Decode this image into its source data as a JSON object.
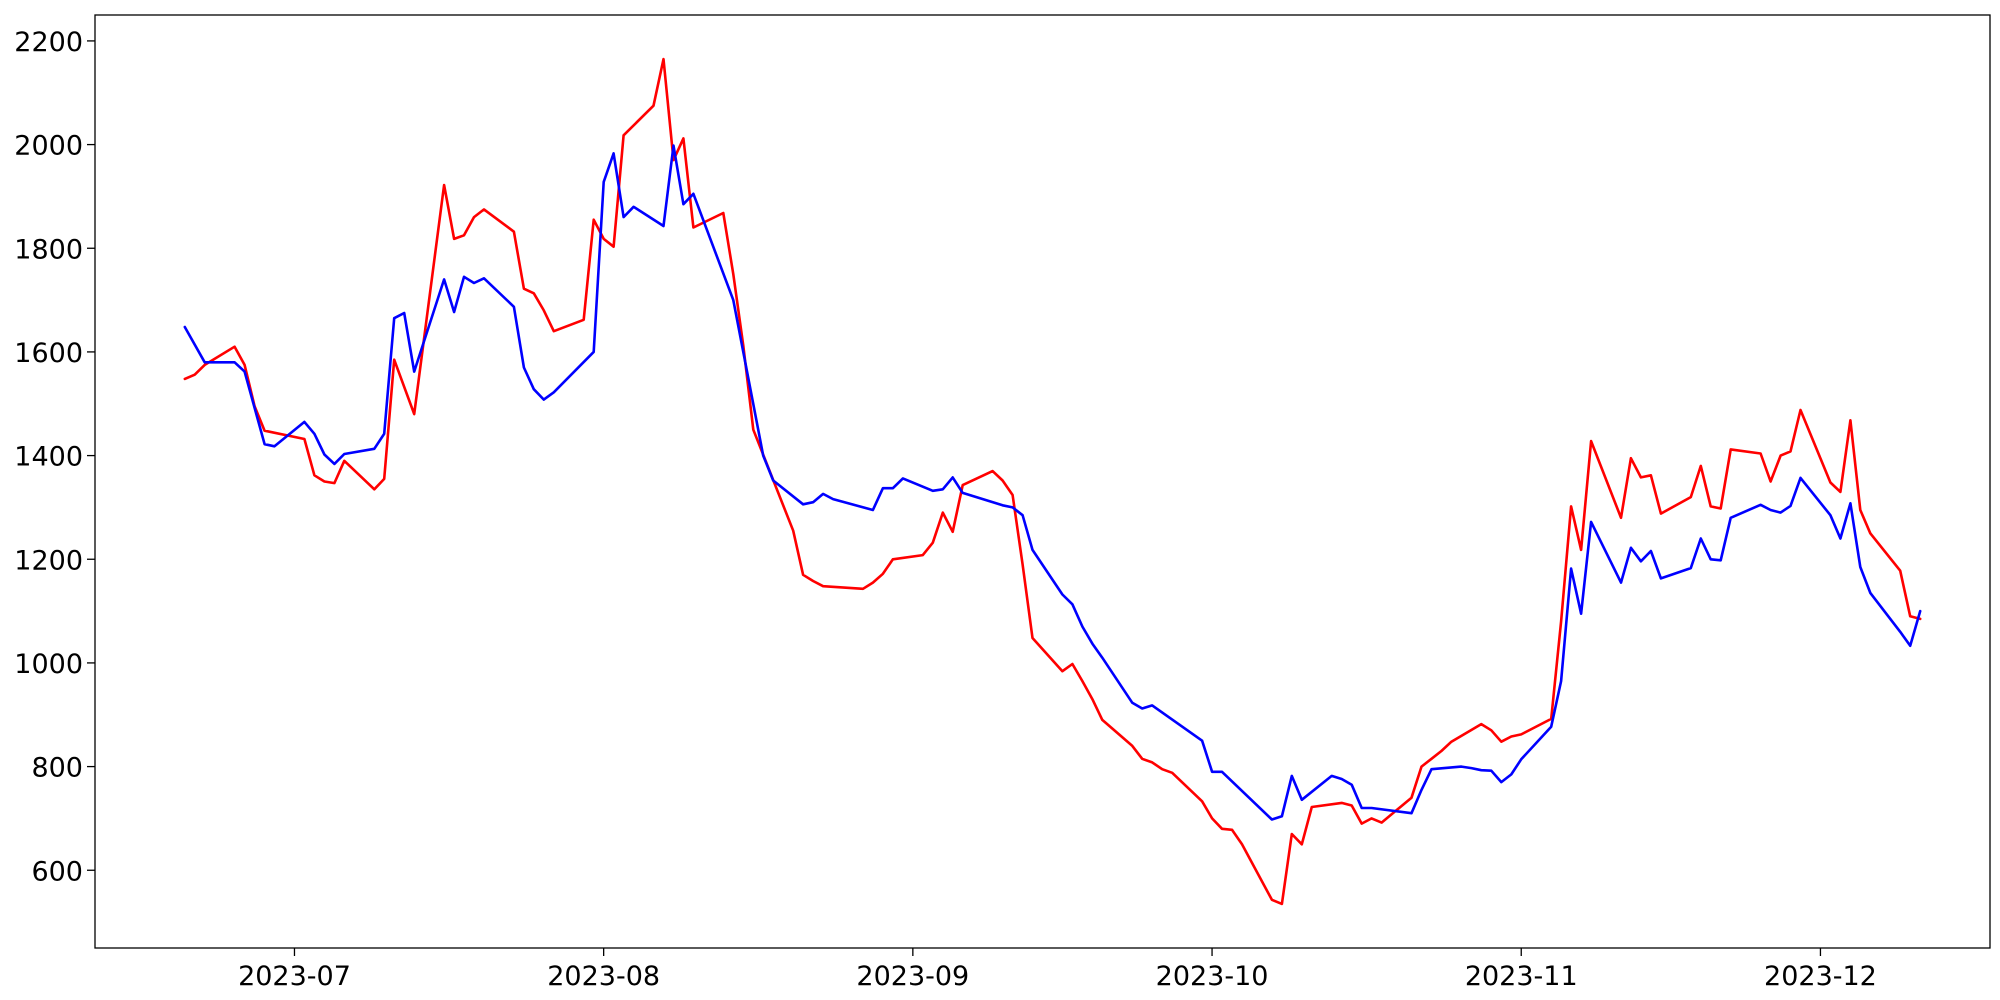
{
  "chart_data": {
    "type": "line",
    "title": "",
    "xlabel": "",
    "ylabel": "",
    "x_ticks": [
      "2023-07-01",
      "2023-08-01",
      "2023-09-01",
      "2023-10-01",
      "2023-11-01",
      "2023-12-01"
    ],
    "x_tick_labels": [
      "2023-07",
      "2023-08",
      "2023-09",
      "2023-10",
      "2023-11",
      "2023-12"
    ],
    "xlim": [
      "2023-06-11",
      "2023-12-18"
    ],
    "ylim": [
      450,
      2250
    ],
    "y_ticks": [
      600,
      800,
      1000,
      1200,
      1400,
      1600,
      1800,
      2000,
      2200
    ],
    "y_tick_labels": [
      "600",
      "800",
      "1000",
      "1200",
      "1400",
      "1600",
      "1800",
      "2000",
      "2200"
    ],
    "grid": false,
    "legend": "none",
    "series": [
      {
        "color": "#ff0000",
        "x": [
          "2023-06-20",
          "2023-06-21",
          "2023-06-22",
          "2023-06-25",
          "2023-06-26",
          "2023-06-27",
          "2023-06-28",
          "2023-07-02",
          "2023-07-03",
          "2023-07-04",
          "2023-07-05",
          "2023-07-06",
          "2023-07-09",
          "2023-07-10",
          "2023-07-11",
          "2023-07-13",
          "2023-07-16",
          "2023-07-17",
          "2023-07-18",
          "2023-07-19",
          "2023-07-20",
          "2023-07-23",
          "2023-07-24",
          "2023-07-25",
          "2023-07-26",
          "2023-07-27",
          "2023-07-30",
          "2023-07-31",
          "2023-08-01",
          "2023-08-02",
          "2023-08-03",
          "2023-08-06",
          "2023-08-07",
          "2023-08-08",
          "2023-08-09",
          "2023-08-10",
          "2023-08-13",
          "2023-08-14",
          "2023-08-15",
          "2023-08-16",
          "2023-08-20",
          "2023-08-21",
          "2023-08-22",
          "2023-08-23",
          "2023-08-27",
          "2023-08-28",
          "2023-08-29",
          "2023-08-30",
          "2023-09-02",
          "2023-09-03",
          "2023-09-04",
          "2023-09-05",
          "2023-09-06",
          "2023-09-09",
          "2023-09-10",
          "2023-09-11",
          "2023-09-12",
          "2023-09-13",
          "2023-09-16",
          "2023-09-17",
          "2023-09-18",
          "2023-09-19",
          "2023-09-20",
          "2023-09-23",
          "2023-09-24",
          "2023-09-25",
          "2023-09-26",
          "2023-09-27",
          "2023-09-30",
          "2023-10-01",
          "2023-10-02",
          "2023-10-03",
          "2023-10-04",
          "2023-10-07",
          "2023-10-08",
          "2023-10-09",
          "2023-10-10",
          "2023-10-11",
          "2023-10-14",
          "2023-10-15",
          "2023-10-16",
          "2023-10-17",
          "2023-10-18",
          "2023-10-21",
          "2023-10-22",
          "2023-10-23",
          "2023-10-24",
          "2023-10-25",
          "2023-10-28",
          "2023-10-29",
          "2023-10-30",
          "2023-10-31",
          "2023-11-01",
          "2023-11-04",
          "2023-11-05",
          "2023-11-06",
          "2023-11-07",
          "2023-11-08",
          "2023-11-11",
          "2023-11-12",
          "2023-11-13",
          "2023-11-14",
          "2023-11-15",
          "2023-11-18",
          "2023-11-19",
          "2023-11-20",
          "2023-11-21",
          "2023-11-22",
          "2023-11-25",
          "2023-11-26",
          "2023-11-27",
          "2023-11-28",
          "2023-11-29",
          "2023-12-02",
          "2023-12-03",
          "2023-12-04",
          "2023-12-05",
          "2023-12-06",
          "2023-12-09",
          "2023-12-10",
          "2023-12-11"
        ],
        "values": [
          1548,
          1556,
          1575,
          1610,
          1575,
          1495,
          1448,
          1432,
          1362,
          1350,
          1347,
          1390,
          1335,
          1355,
          1585,
          1480,
          1922,
          1818,
          1825,
          1860,
          1875,
          1832,
          1722,
          1713,
          1680,
          1640,
          1662,
          1855,
          1818,
          1803,
          2018,
          2075,
          2165,
          1970,
          2012,
          1840,
          1868,
          1750,
          1612,
          1450,
          1255,
          1170,
          1158,
          1148,
          1143,
          1155,
          1172,
          1200,
          1208,
          1232,
          1290,
          1253,
          1343,
          1370,
          1352,
          1324,
          1190,
          1048,
          984,
          998,
          965,
          930,
          890,
          840,
          815,
          808,
          795,
          788,
          733,
          700,
          680,
          678,
          650,
          543,
          535,
          670,
          650,
          722,
          730,
          725,
          690,
          700,
          692,
          740,
          800,
          815,
          830,
          848,
          882,
          870,
          848,
          858,
          862,
          892,
          1080,
          1302,
          1218,
          1428,
          1280,
          1395,
          1358,
          1362,
          1288,
          1320,
          1380,
          1302,
          1298,
          1412,
          1404,
          1350,
          1400,
          1408,
          1488,
          1348,
          1330,
          1468,
          1295,
          1250,
          1178,
          1090,
          1085
        ]
      },
      {
        "color": "#0000ff",
        "x": [
          "2023-06-20",
          "2023-06-22",
          "2023-06-23",
          "2023-06-25",
          "2023-06-26",
          "2023-06-27",
          "2023-06-28",
          "2023-06-29",
          "2023-07-02",
          "2023-07-03",
          "2023-07-04",
          "2023-07-05",
          "2023-07-06",
          "2023-07-09",
          "2023-07-10",
          "2023-07-11",
          "2023-07-12",
          "2023-07-13",
          "2023-07-16",
          "2023-07-17",
          "2023-07-18",
          "2023-07-19",
          "2023-07-20",
          "2023-07-23",
          "2023-07-24",
          "2023-07-25",
          "2023-07-26",
          "2023-07-27",
          "2023-07-31",
          "2023-08-01",
          "2023-08-02",
          "2023-08-03",
          "2023-08-04",
          "2023-08-07",
          "2023-08-08",
          "2023-08-09",
          "2023-08-10",
          "2023-08-14",
          "2023-08-17",
          "2023-08-18",
          "2023-08-21",
          "2023-08-22",
          "2023-08-23",
          "2023-08-24",
          "2023-08-28",
          "2023-08-29",
          "2023-08-30",
          "2023-08-31",
          "2023-09-03",
          "2023-09-04",
          "2023-09-05",
          "2023-09-06",
          "2023-09-10",
          "2023-09-11",
          "2023-09-12",
          "2023-09-13",
          "2023-09-16",
          "2023-09-17",
          "2023-09-18",
          "2023-09-19",
          "2023-09-20",
          "2023-09-23",
          "2023-09-24",
          "2023-09-25",
          "2023-09-30",
          "2023-10-01",
          "2023-10-02",
          "2023-10-07",
          "2023-10-08",
          "2023-10-09",
          "2023-10-10",
          "2023-10-13",
          "2023-10-14",
          "2023-10-15",
          "2023-10-16",
          "2023-10-17",
          "2023-10-21",
          "2023-10-22",
          "2023-10-23",
          "2023-10-26",
          "2023-10-27",
          "2023-10-28",
          "2023-10-29",
          "2023-10-30",
          "2023-10-31",
          "2023-11-01",
          "2023-11-04",
          "2023-11-05",
          "2023-11-06",
          "2023-11-07",
          "2023-11-08",
          "2023-11-11",
          "2023-11-12",
          "2023-11-13",
          "2023-11-14",
          "2023-11-15",
          "2023-11-18",
          "2023-11-19",
          "2023-11-20",
          "2023-11-21",
          "2023-11-22",
          "2023-11-25",
          "2023-11-26",
          "2023-11-27",
          "2023-11-28",
          "2023-11-29",
          "2023-12-02",
          "2023-12-03",
          "2023-12-04",
          "2023-12-05",
          "2023-12-06",
          "2023-12-07",
          "2023-12-09",
          "2023-12-10",
          "2023-12-11"
        ],
        "values": [
          1648,
          1580,
          1580,
          1580,
          1562,
          1492,
          1422,
          1418,
          1465,
          1442,
          1402,
          1384,
          1403,
          1413,
          1442,
          1665,
          1675,
          1562,
          1740,
          1677,
          1745,
          1733,
          1742,
          1687,
          1570,
          1528,
          1508,
          1522,
          1600,
          1928,
          1983,
          1860,
          1880,
          1843,
          1998,
          1885,
          1905,
          1700,
          1400,
          1352,
          1306,
          1310,
          1326,
          1316,
          1295,
          1337,
          1337,
          1356,
          1332,
          1335,
          1358,
          1328,
          1304,
          1300,
          1285,
          1218,
          1132,
          1113,
          1070,
          1037,
          1010,
          923,
          912,
          918,
          850,
          790,
          790,
          698,
          704,
          782,
          736,
          782,
          776,
          765,
          720,
          720,
          710,
          755,
          795,
          800,
          797,
          793,
          792,
          770,
          785,
          814,
          877,
          965,
          1182,
          1095,
          1272,
          1155,
          1222,
          1196,
          1216,
          1163,
          1183,
          1240,
          1200,
          1198,
          1280,
          1305,
          1295,
          1290,
          1303,
          1357,
          1285,
          1240,
          1308,
          1185,
          1135,
          1110,
          1060,
          1033,
          1100
        ]
      }
    ]
  }
}
